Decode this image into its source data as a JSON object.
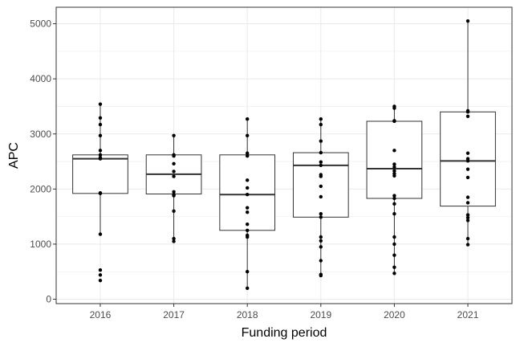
{
  "chart_data": {
    "type": "box",
    "xlabel": "Funding period",
    "ylabel": "APC",
    "ylim": [
      -80,
      5300
    ],
    "y_ticks": [
      0,
      1000,
      2000,
      3000,
      4000,
      5000
    ],
    "y_tick_labels": [
      "0",
      "1000",
      "2000",
      "3000",
      "4000",
      "5000"
    ],
    "grid": true,
    "colors": {
      "box_fill": "#ffffff",
      "box_stroke": "#333333",
      "median": "#333333",
      "point": "#000000",
      "grid": "#ebebeb"
    },
    "categories": [
      "2016",
      "2017",
      "2018",
      "2019",
      "2020",
      "2021"
    ],
    "boxes": [
      {
        "category": "2016",
        "q1": 1920,
        "median": 2550,
        "q3": 2620,
        "whisker_low": 1180,
        "whisker_high": 3540,
        "points": [
          3540,
          3290,
          3170,
          2970,
          2700,
          2620,
          2570,
          2550,
          1930,
          1920,
          1180,
          530,
          440,
          340
        ]
      },
      {
        "category": "2017",
        "q1": 1910,
        "median": 2270,
        "q3": 2620,
        "whisker_low": 1050,
        "whisker_high": 2970,
        "points": [
          2970,
          2620,
          2600,
          2460,
          2320,
          2230,
          1950,
          1900,
          1880,
          1600,
          1100,
          1050
        ]
      },
      {
        "category": "2018",
        "q1": 1250,
        "median": 1900,
        "q3": 2620,
        "whisker_low": 200,
        "whisker_high": 3270,
        "points": [
          3270,
          2970,
          2650,
          2600,
          2160,
          2020,
          1900,
          1660,
          1580,
          1360,
          1250,
          1160,
          1130,
          500,
          200
        ]
      },
      {
        "category": "2019",
        "q1": 1490,
        "median": 2430,
        "q3": 2660,
        "whisker_low": 430,
        "whisker_high": 3270,
        "points": [
          3270,
          3170,
          2870,
          2660,
          2490,
          2430,
          2260,
          2230,
          2050,
          1860,
          1550,
          1490,
          1130,
          1060,
          950,
          700,
          450,
          430
        ]
      },
      {
        "category": "2020",
        "q1": 1830,
        "median": 2370,
        "q3": 3230,
        "whisker_low": 470,
        "whisker_high": 3500,
        "points": [
          3500,
          3470,
          3240,
          3230,
          2700,
          2450,
          2400,
          2330,
          2280,
          2240,
          1880,
          1830,
          1730,
          1550,
          1130,
          1000,
          800,
          580,
          470
        ]
      },
      {
        "category": "2021",
        "q1": 1690,
        "median": 2510,
        "q3": 3400,
        "whisker_low": 990,
        "whisker_high": 5050,
        "points": [
          5050,
          3420,
          3400,
          3320,
          2650,
          2550,
          2510,
          2360,
          2210,
          1850,
          1750,
          1530,
          1480,
          1430,
          1100,
          990
        ]
      }
    ]
  }
}
